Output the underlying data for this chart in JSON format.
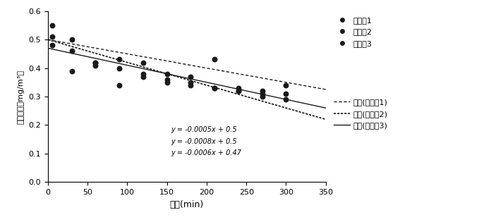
{
  "title": "",
  "xlabel": "时间(min)",
  "ylabel": "甲醉浓度（mg/m³）",
  "xlim": [
    0,
    350
  ],
  "ylim": [
    0,
    0.6
  ],
  "xticks": [
    0,
    50,
    100,
    150,
    200,
    250,
    300,
    350
  ],
  "yticks": [
    0,
    0.1,
    0.2,
    0.3,
    0.4,
    0.5,
    0.6
  ],
  "series1_x": [
    5,
    30,
    60,
    90,
    120,
    150,
    180,
    210,
    240,
    270,
    300
  ],
  "series1_y": [
    0.55,
    0.46,
    0.42,
    0.43,
    0.42,
    0.38,
    0.37,
    0.43,
    0.33,
    0.3,
    0.34
  ],
  "series2_x": [
    5,
    30,
    60,
    90,
    120,
    150,
    180,
    210,
    240,
    270,
    300
  ],
  "series2_y": [
    0.51,
    0.5,
    0.41,
    0.4,
    0.38,
    0.36,
    0.35,
    0.33,
    0.32,
    0.32,
    0.29
  ],
  "series3_x": [
    5,
    30,
    60,
    90,
    120,
    150,
    180,
    210,
    240,
    270,
    300
  ],
  "series3_y": [
    0.48,
    0.39,
    0.42,
    0.34,
    0.37,
    0.35,
    0.34,
    0.33,
    0.32,
    0.31,
    0.31
  ],
  "line1_slope": -0.0005,
  "line1_intercept": 0.5,
  "line2_slope": -0.0008,
  "line2_intercept": 0.5,
  "line3_slope": -0.0006,
  "line3_intercept": 0.47,
  "line1_label": "线性(实施例1)",
  "line2_label": "线性(实施例2)",
  "line3_label": "线性(实施例3)",
  "eq1": "y = -0.0005x + 0.5",
  "eq2": "y = -0.0008x + 0.5",
  "eq3": "y = -0.0006x + 0.47",
  "legend1": "实施例1",
  "legend2": "实施例2",
  "legend3": "实施例3",
  "dot_color": "#1a1a1a",
  "line_color": "#1a1a1a",
  "background_color": "#ffffff"
}
